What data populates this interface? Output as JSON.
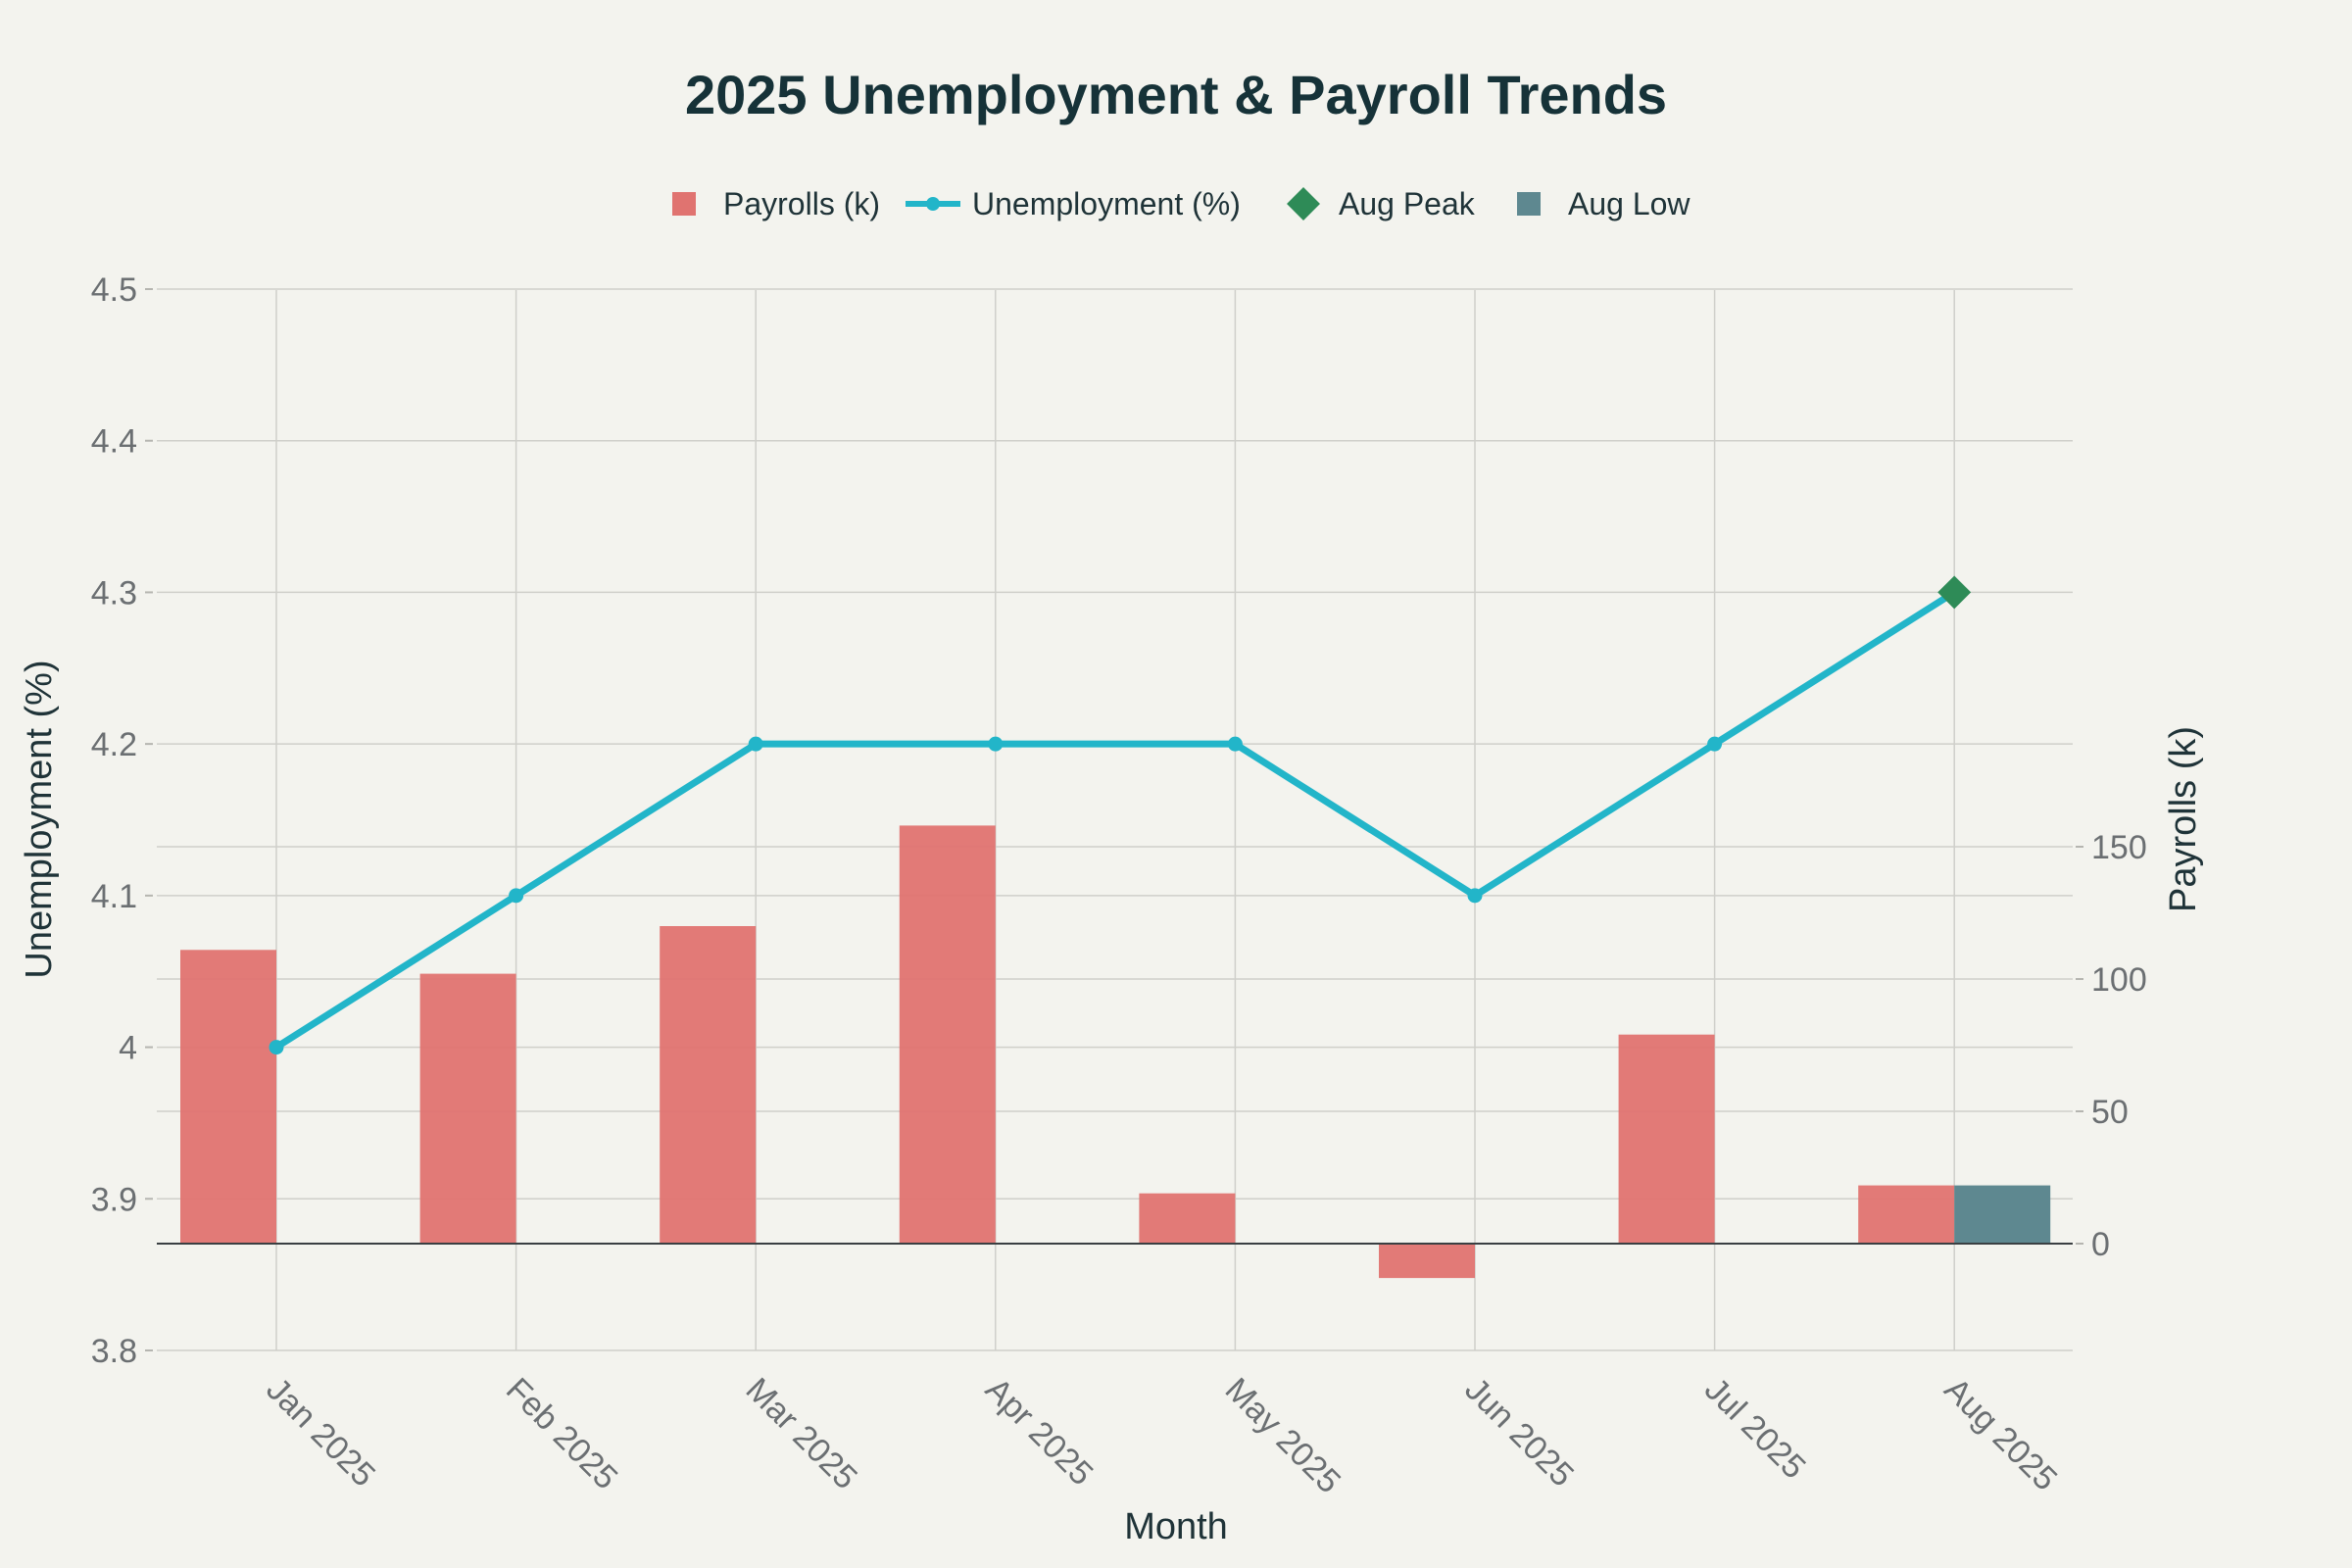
{
  "chart_data": {
    "type": "bar+line",
    "title": "2025 Unemployment & Payroll Trends",
    "xlabel": "Month",
    "ylabel_left": "Unemployment (%)",
    "ylabel_right": "Payrolls (k)",
    "categories": [
      "Jan 2025",
      "Feb 2025",
      "Mar 2025",
      "Apr 2025",
      "May 2025",
      "Jun 2025",
      "Jul 2025",
      "Aug 2025"
    ],
    "left_axis": {
      "range": [
        3.8,
        4.5
      ],
      "ticks": [
        3.8,
        3.9,
        4.0,
        4.1,
        4.2,
        4.3,
        4.4,
        4.5
      ],
      "tick_labels": [
        "3.8",
        "3.9",
        "4",
        "4.1",
        "4.2",
        "4.3",
        "4.4",
        "4.5"
      ]
    },
    "right_axis": {
      "ticks": [
        0,
        50,
        100,
        150
      ],
      "tick_labels": [
        "0",
        "50",
        "100",
        "150"
      ]
    },
    "series": [
      {
        "name": "Payrolls (k)",
        "type": "bar",
        "axis": "right",
        "color": "#e07370",
        "values": [
          111,
          102,
          120,
          158,
          19,
          -13,
          79,
          22
        ]
      },
      {
        "name": "Unemployment (%)",
        "type": "line",
        "axis": "left",
        "color": "#22b5c9",
        "values": [
          4.0,
          4.1,
          4.2,
          4.2,
          4.2,
          4.1,
          4.2,
          4.3
        ]
      },
      {
        "name": "Aug Peak",
        "type": "marker",
        "axis": "left",
        "color": "#2e8b57",
        "category": "Aug 2025",
        "value": 4.3
      },
      {
        "name": "Aug Low",
        "type": "bar",
        "axis": "right",
        "color": "#5e8890",
        "category": "Aug 2025",
        "value": 22
      }
    ],
    "legend": {
      "placement": "top-center"
    },
    "grid": true
  }
}
